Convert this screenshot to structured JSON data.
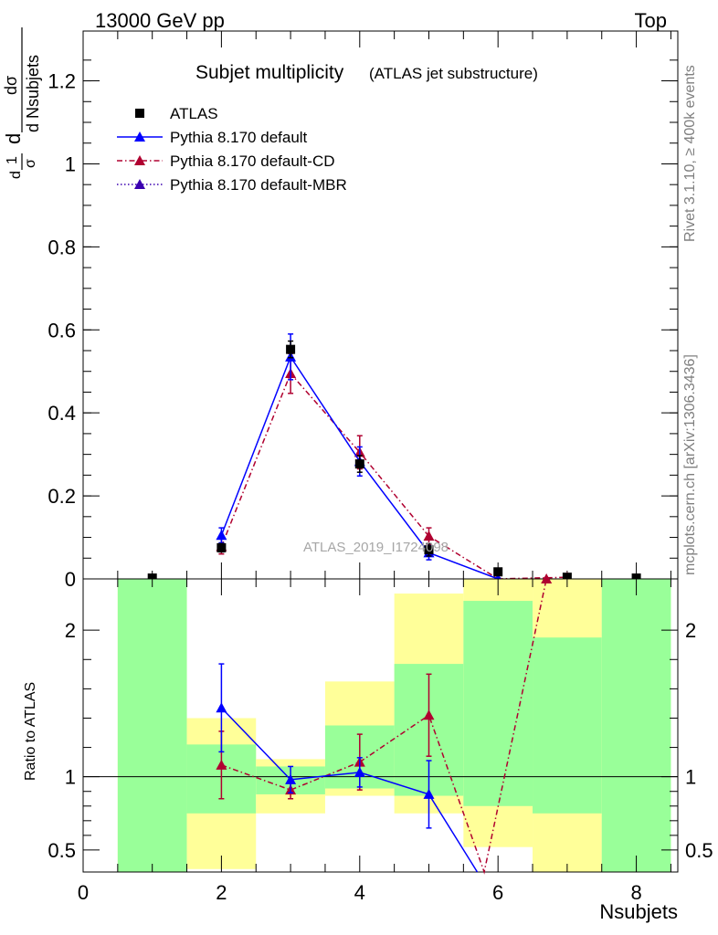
{
  "header": {
    "left": "13000 GeV pp",
    "right": "Top"
  },
  "title": {
    "main": "Subjet multiplicity",
    "sub": "(ATLAS jet substructure)"
  },
  "side_text": {
    "rivet": "Rivet 3.1.10, ≥ 400k events",
    "mcplots": "mcplots.cern.ch [arXiv:1306.3436]"
  },
  "watermark": "ATLAS_2019_I1724098",
  "ylabel_main": {
    "numerator": "dσ",
    "denominator": "d Nsubjets",
    "prefix_top": "1",
    "prefix_bottom": "σ",
    "prefix_d": "d"
  },
  "ylabel_ratio": "Ratio to ATLAS",
  "xlabel": "Nsubjets",
  "legend": [
    {
      "label": "ATLAS",
      "color": "#000000",
      "marker": "square",
      "line": "none"
    },
    {
      "label": "Pythia 8.170 default",
      "color": "#0000ff",
      "marker": "triangle",
      "line": "solid"
    },
    {
      "label": "Pythia 8.170 default-CD",
      "color": "#b00030",
      "marker": "triangle",
      "line": "dashdot"
    },
    {
      "label": "Pythia 8.170 default-MBR",
      "color": "#3a00b0",
      "marker": "triangle",
      "line": "dotted"
    }
  ],
  "chart_data": [
    {
      "type": "scatter",
      "panel": "main",
      "xlim": [
        0,
        8.6
      ],
      "ylim": [
        0,
        1.32
      ],
      "xticks": [
        0,
        2,
        4,
        6,
        8
      ],
      "yticks": [
        0,
        0.2,
        0.4,
        0.6,
        0.8,
        1,
        1.2
      ],
      "ytick_labels": [
        "0",
        "0.2",
        "0.4",
        "0.6",
        "0.8",
        "1",
        "1.2"
      ],
      "series": [
        {
          "name": "ATLAS",
          "x": [
            1,
            2,
            3,
            4,
            5,
            6,
            7,
            8
          ],
          "y": [
            0.002,
            0.075,
            0.553,
            0.277,
            0.07,
            0.017,
            0.004,
            0.002
          ],
          "err": [
            0.001,
            0.01,
            0.02,
            0.02,
            0.015,
            0.004,
            0.002,
            0.001
          ]
        },
        {
          "name": "Pythia 8.170 default",
          "x": [
            2,
            3,
            4,
            5,
            6
          ],
          "y": [
            0.105,
            0.535,
            0.283,
            0.063,
            0.0
          ],
          "err": [
            0.018,
            0.055,
            0.035,
            0.017,
            0.002
          ]
        },
        {
          "name": "Pythia 8.170 default-CD",
          "x": [
            2,
            3,
            4,
            5,
            6,
            7
          ],
          "y": [
            0.078,
            0.495,
            0.305,
            0.103,
            0.0,
            0.004
          ],
          "err": [
            0.018,
            0.048,
            0.04,
            0.02,
            0.002,
            0.002
          ]
        }
      ]
    },
    {
      "type": "scatter",
      "panel": "ratio",
      "xlim": [
        0,
        8.6
      ],
      "ylim": [
        0.35,
        2.35
      ],
      "xticks": [
        0,
        2,
        4,
        6,
        8
      ],
      "yticks": [
        0.5,
        1,
        2
      ],
      "ytick_labels": [
        "0.5",
        "1",
        "2"
      ],
      "reference_line": 1,
      "bands": [
        {
          "x0": 0.5,
          "x1": 1.5,
          "green": [
            0.35,
            2.35
          ],
          "yellow": [
            0.35,
            2.35
          ]
        },
        {
          "x0": 1.5,
          "x1": 2.5,
          "green": [
            0.75,
            1.22
          ],
          "yellow": [
            0.37,
            1.4
          ]
        },
        {
          "x0": 2.5,
          "x1": 3.5,
          "green": [
            0.88,
            1.07
          ],
          "yellow": [
            0.75,
            1.12
          ]
        },
        {
          "x0": 3.5,
          "x1": 4.5,
          "green": [
            0.92,
            1.35
          ],
          "yellow": [
            0.87,
            1.65
          ]
        },
        {
          "x0": 4.5,
          "x1": 5.5,
          "green": [
            0.87,
            1.77
          ],
          "yellow": [
            0.75,
            2.25
          ]
        },
        {
          "x0": 5.5,
          "x1": 6.5,
          "green": [
            0.8,
            2.2
          ],
          "yellow": [
            0.52,
            2.35
          ]
        },
        {
          "x0": 6.5,
          "x1": 7.5,
          "green": [
            0.75,
            1.95
          ],
          "yellow": [
            0.35,
            2.35
          ]
        },
        {
          "x0": 7.5,
          "x1": 8.5,
          "green": [
            0.35,
            2.35
          ],
          "yellow": [
            0.35,
            2.35
          ]
        }
      ],
      "series": [
        {
          "name": "Pythia 8.170 default",
          "x": [
            2,
            3,
            4,
            5,
            5.7
          ],
          "y": [
            1.47,
            0.98,
            1.03,
            0.88,
            0.33
          ],
          "err": [
            0.3,
            0.09,
            0.1,
            0.23,
            0
          ]
        },
        {
          "name": "Pythia 8.170 default-CD",
          "x": [
            2,
            3,
            4,
            5,
            5.8,
            6.7
          ],
          "y": [
            1.08,
            0.91,
            1.1,
            1.42,
            0.33,
            2.35
          ],
          "err": [
            0.23,
            0.06,
            0.19,
            0.28,
            0,
            0
          ]
        }
      ]
    }
  ]
}
